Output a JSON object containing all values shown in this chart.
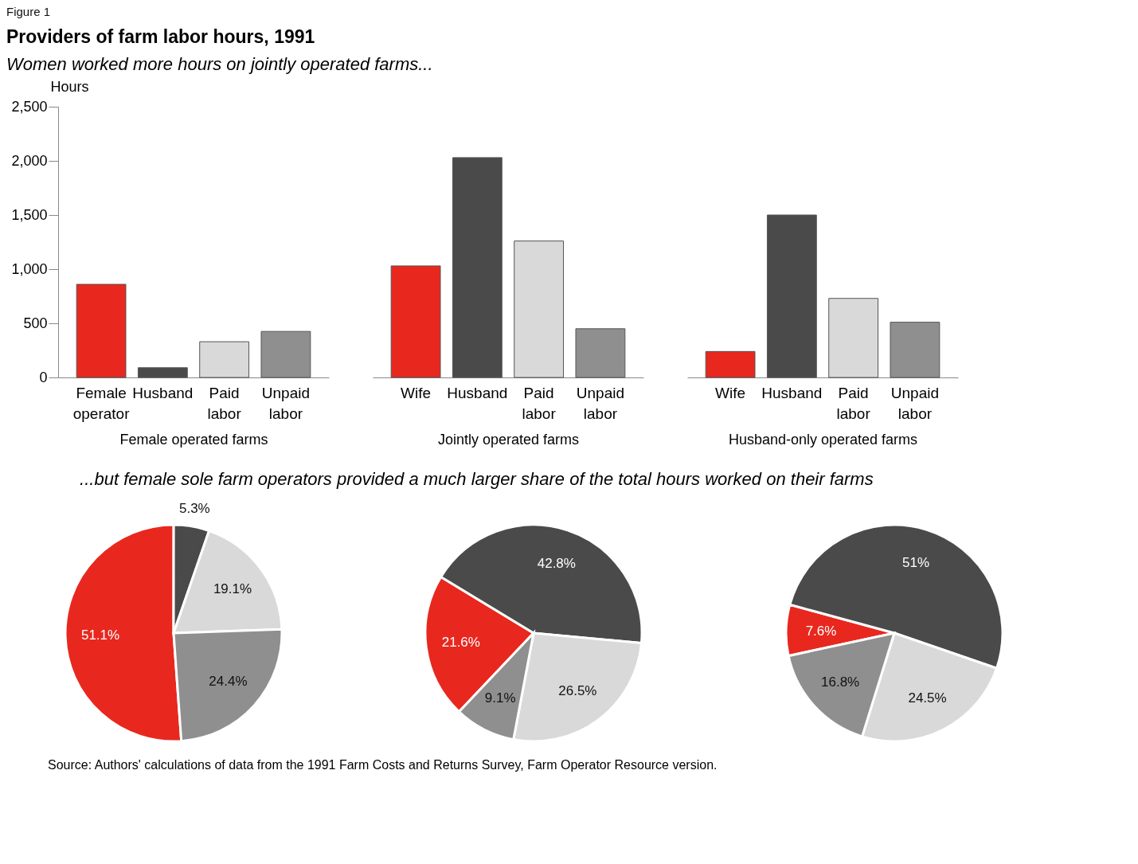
{
  "chart_data": [
    {
      "type": "bar",
      "title": "Providers of farm labor hours, 1991",
      "subtitle": "Women worked more hours on jointly operated farms...",
      "annotations": [
        "Figure 1"
      ],
      "ylabel": "Hours",
      "xlabel": "Female operated farms",
      "categories": [
        "Female operator",
        "Husband",
        "Paid labor",
        "Unpaid labor"
      ],
      "values": [
        860,
        90,
        330,
        425
      ],
      "colors": [
        "#e8281e",
        "#4a4a4a",
        "#d9d9d9",
        "#8f8f8f"
      ],
      "ylim": [
        0,
        2500
      ],
      "yticks": [
        0,
        500,
        {
          "value": 1000,
          "label": "1,000"
        },
        {
          "value": 1500,
          "label": "1,500"
        },
        {
          "value": 2000,
          "label": "2,000"
        },
        {
          "value": 2500,
          "label": "2,500"
        }
      ]
    },
    {
      "type": "bar",
      "xlabel": "Jointly operated farms",
      "categories": [
        "Wife",
        "Husband",
        "Paid labor",
        "Unpaid labor"
      ],
      "values": [
        1030,
        2030,
        1260,
        450
      ],
      "colors": [
        "#e8281e",
        "#4a4a4a",
        "#d9d9d9",
        "#8f8f8f"
      ],
      "ylim": [
        0,
        2500
      ],
      "tick_labels": "x"
    },
    {
      "type": "bar",
      "xlabel": "Husband-only operated farms",
      "categories": [
        "Wife",
        "Husband",
        "Paid labor",
        "Unpaid labor"
      ],
      "values": [
        240,
        1500,
        730,
        510
      ],
      "colors": [
        "#e8281e",
        "#4a4a4a",
        "#d9d9d9",
        "#8f8f8f"
      ],
      "ylim": [
        0,
        2500
      ],
      "tick_labels": "x"
    },
    {
      "type": "pie",
      "title": "...but female sole farm operators provided a much larger share of the total hours worked on their farms",
      "categories": [
        null,
        null,
        null,
        null
      ],
      "values": [
        51.1,
        5.3,
        19.1,
        24.4
      ],
      "value_labels": [
        "51.1%",
        "5.3%",
        "19.1%",
        "24.4%"
      ],
      "colors": [
        "#e8281e",
        "#4a4a4a",
        "#d9d9d9",
        "#8f8f8f"
      ]
    },
    {
      "type": "pie",
      "categories": [
        null,
        null,
        null,
        null
      ],
      "values": [
        21.6,
        42.8,
        26.5,
        9.1
      ],
      "value_labels": [
        "21.6%",
        "42.8%",
        "26.5%",
        "9.1%"
      ],
      "colors": [
        "#e8281e",
        "#4a4a4a",
        "#d9d9d9",
        "#8f8f8f"
      ]
    },
    {
      "type": "pie",
      "annotations": [
        "Source:  Authors' calculations of data from the 1991 Farm Costs and Returns Survey, Farm Operator Resource version."
      ],
      "categories": [
        null,
        null,
        null,
        null
      ],
      "values": [
        7.6,
        51,
        24.5,
        16.8
      ],
      "value_labels": [
        "7.6%",
        "51%",
        "24.5%",
        "16.8%"
      ],
      "colors": [
        "#e8281e",
        "#4a4a4a",
        "#d9d9d9",
        "#8f8f8f"
      ]
    }
  ]
}
